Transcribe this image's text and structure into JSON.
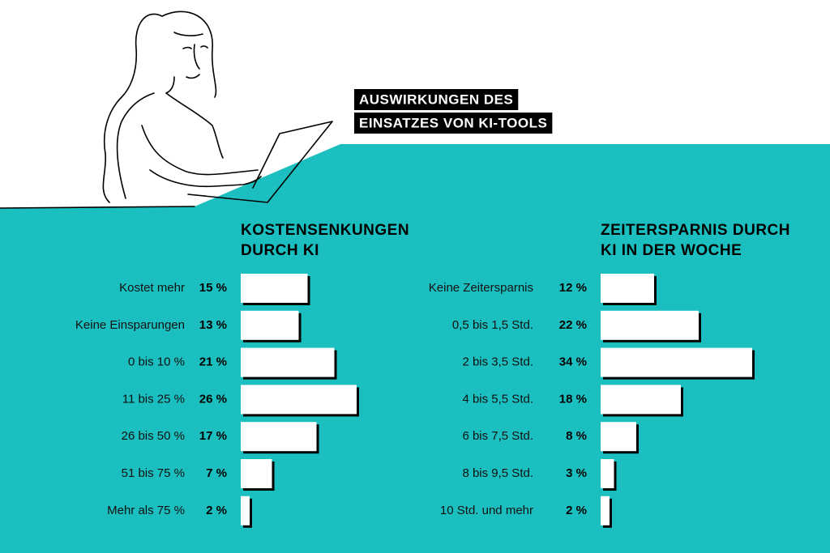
{
  "title": [
    "AUSWIRKUNGEN DES",
    "EINSATZES VON KI-TOOLS"
  ],
  "chart_data": [
    {
      "type": "bar",
      "orientation": "horizontal",
      "title": [
        "KOSTENSENKUNGEN",
        "DURCH KI"
      ],
      "categories": [
        "Kostet mehr",
        "Keine Einsparungen",
        "0 bis 10 %",
        "11 bis 25 %",
        "26 bis 50 %",
        "51 bis 75 %",
        "Mehr als 75 %"
      ],
      "values": [
        15,
        13,
        21,
        26,
        17,
        7,
        2
      ],
      "value_labels": [
        "15 %",
        "13 %",
        "21 %",
        "26 %",
        "17 %",
        "7 %",
        "2 %"
      ],
      "color": "#ffffff"
    },
    {
      "type": "bar",
      "orientation": "horizontal",
      "title": [
        "ZEITERSPARNIS DURCH",
        "KI IN DER WOCHE"
      ],
      "categories": [
        "Keine Zeitersparnis",
        "0,5 bis 1,5 Std.",
        "2 bis 3,5 Std.",
        "4 bis 5,5 Std.",
        "6 bis 7,5 Std.",
        "8 bis 9,5 Std.",
        "10 Std. und mehr"
      ],
      "values": [
        12,
        22,
        34,
        18,
        8,
        3,
        2
      ],
      "value_labels": [
        "12 %",
        "22 %",
        "34 %",
        "18 %",
        "8 %",
        "3 %",
        "2 %"
      ],
      "color": "#ffffff"
    }
  ]
}
